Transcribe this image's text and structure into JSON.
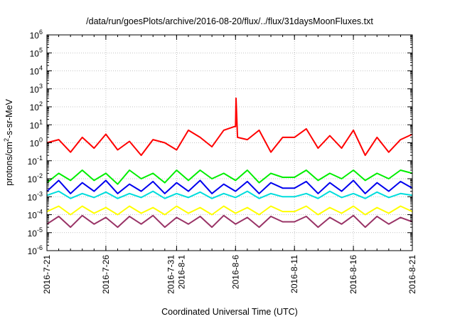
{
  "chart_data": {
    "type": "line",
    "title": "/data/run/goesPlots/archive/2016-08-20/flux/../flux/31daysMoonFluxes.txt",
    "xlabel": "Coordinated Universal Time (UTC)",
    "ylabel": "protons/cm²-s-sr-MeV",
    "ylabel_parts": {
      "pre": "protons/cm",
      "sup": "2",
      "post": "-s-sr-MeV"
    },
    "yscale": "log",
    "ylim_exponents": [
      -6,
      6
    ],
    "y_tick_labels": [
      {
        "base": "10",
        "exp": "-6"
      },
      {
        "base": "10",
        "exp": "-5"
      },
      {
        "base": "10",
        "exp": "-4"
      },
      {
        "base": "10",
        "exp": "-3"
      },
      {
        "base": "10",
        "exp": "-2"
      },
      {
        "base": "10",
        "exp": "-1"
      },
      {
        "base": "10",
        "exp": "0"
      },
      {
        "base": "10",
        "exp": "1"
      },
      {
        "base": "10",
        "exp": "2"
      },
      {
        "base": "10",
        "exp": "3"
      },
      {
        "base": "10",
        "exp": "4"
      },
      {
        "base": "10",
        "exp": "5"
      },
      {
        "base": "10",
        "exp": "6"
      }
    ],
    "x_start": "2016-07-21",
    "x_end": "2016-08-21",
    "x_tick_labels": [
      "2016-7-21",
      "2016-7-26",
      "2016-7-31\n2016-8-1",
      "2016-8-6",
      "2016-8-11",
      "2016-8-16",
      "2016-8-21"
    ],
    "x_tick_dates": [
      "2016-07-21",
      "2016-07-26",
      "2016-08-01",
      "2016-08-06",
      "2016-08-11",
      "2016-08-16",
      "2016-08-21"
    ],
    "grid": true,
    "legend": "none",
    "series": [
      {
        "color": "#ff0000",
        "points": [
          [
            "2016-07-21",
            1.0
          ],
          [
            "2016-07-22",
            1.5
          ],
          [
            "2016-07-23",
            0.3
          ],
          [
            "2016-07-24",
            2.0
          ],
          [
            "2016-07-25",
            0.5
          ],
          [
            "2016-07-26",
            3.0
          ],
          [
            "2016-07-27",
            0.4
          ],
          [
            "2016-07-28",
            1.2
          ],
          [
            "2016-07-29",
            0.2
          ],
          [
            "2016-07-30",
            1.5
          ],
          [
            "2016-07-31",
            1.0
          ],
          [
            "2016-08-01",
            0.4
          ],
          [
            "2016-08-02",
            5.0
          ],
          [
            "2016-08-03",
            2.0
          ],
          [
            "2016-08-04",
            0.6
          ],
          [
            "2016-08-05",
            5.0
          ],
          [
            "2016-08-06",
            8.0
          ],
          [
            "2016-08-07",
            1.5
          ],
          [
            "2016-08-08",
            5.0
          ],
          [
            "2016-08-09",
            0.3
          ],
          [
            "2016-08-10",
            2.0
          ],
          [
            "2016-08-11",
            2.0
          ],
          [
            "2016-08-12",
            6.0
          ],
          [
            "2016-08-13",
            0.5
          ],
          [
            "2016-08-14",
            2.5
          ],
          [
            "2016-08-15",
            0.5
          ],
          [
            "2016-08-16",
            5.0
          ],
          [
            "2016-08-17",
            0.2
          ],
          [
            "2016-08-18",
            2.0
          ],
          [
            "2016-08-19",
            0.3
          ],
          [
            "2016-08-20",
            1.5
          ],
          [
            "2016-08-21",
            3.0
          ]
        ],
        "peak": [
          "2016-08-06",
          300
        ]
      },
      {
        "color": "#00ee00",
        "points": [
          [
            "2016-07-21",
            0.006
          ],
          [
            "2016-07-22",
            0.02
          ],
          [
            "2016-07-23",
            0.008
          ],
          [
            "2016-07-24",
            0.03
          ],
          [
            "2016-07-25",
            0.008
          ],
          [
            "2016-07-26",
            0.02
          ],
          [
            "2016-07-27",
            0.005
          ],
          [
            "2016-07-28",
            0.03
          ],
          [
            "2016-07-29",
            0.01
          ],
          [
            "2016-07-30",
            0.02
          ],
          [
            "2016-07-31",
            0.006
          ],
          [
            "2016-08-01",
            0.03
          ],
          [
            "2016-08-02",
            0.008
          ],
          [
            "2016-08-03",
            0.03
          ],
          [
            "2016-08-04",
            0.01
          ],
          [
            "2016-08-05",
            0.02
          ],
          [
            "2016-08-06",
            0.008
          ],
          [
            "2016-08-07",
            0.03
          ],
          [
            "2016-08-08",
            0.006
          ],
          [
            "2016-08-09",
            0.02
          ],
          [
            "2016-08-10",
            0.012
          ],
          [
            "2016-08-11",
            0.012
          ],
          [
            "2016-08-12",
            0.03
          ],
          [
            "2016-08-13",
            0.008
          ],
          [
            "2016-08-14",
            0.02
          ],
          [
            "2016-08-15",
            0.01
          ],
          [
            "2016-08-16",
            0.03
          ],
          [
            "2016-08-17",
            0.008
          ],
          [
            "2016-08-18",
            0.02
          ],
          [
            "2016-08-19",
            0.01
          ],
          [
            "2016-08-20",
            0.03
          ],
          [
            "2016-08-21",
            0.02
          ]
        ]
      },
      {
        "color": "#00dddd",
        "points": [
          [
            "2016-07-21",
            0.0012
          ],
          [
            "2016-07-22",
            0.002
          ],
          [
            "2016-07-23",
            0.0008
          ],
          [
            "2016-07-24",
            0.0015
          ],
          [
            "2016-07-25",
            0.0009
          ],
          [
            "2016-07-26",
            0.0018
          ],
          [
            "2016-07-27",
            0.0008
          ],
          [
            "2016-07-28",
            0.0015
          ],
          [
            "2016-07-29",
            0.0009
          ],
          [
            "2016-07-30",
            0.002
          ],
          [
            "2016-07-31",
            0.0008
          ],
          [
            "2016-08-01",
            0.0015
          ],
          [
            "2016-08-02",
            0.0009
          ],
          [
            "2016-08-03",
            0.0018
          ],
          [
            "2016-08-04",
            0.0008
          ],
          [
            "2016-08-05",
            0.0015
          ],
          [
            "2016-08-06",
            0.0009
          ],
          [
            "2016-08-07",
            0.002
          ],
          [
            "2016-08-08",
            0.0008
          ],
          [
            "2016-08-09",
            0.0015
          ],
          [
            "2016-08-10",
            0.001
          ],
          [
            "2016-08-11",
            0.001
          ],
          [
            "2016-08-12",
            0.0015
          ],
          [
            "2016-08-13",
            0.0008
          ],
          [
            "2016-08-14",
            0.002
          ],
          [
            "2016-08-15",
            0.0009
          ],
          [
            "2016-08-16",
            0.0015
          ],
          [
            "2016-08-17",
            0.0008
          ],
          [
            "2016-08-18",
            0.0018
          ],
          [
            "2016-08-19",
            0.0009
          ],
          [
            "2016-08-20",
            0.0015
          ],
          [
            "2016-08-21",
            0.0012
          ]
        ]
      },
      {
        "color": "#0000ee",
        "points": [
          [
            "2016-07-21",
            0.002
          ],
          [
            "2016-07-22",
            0.008
          ],
          [
            "2016-07-23",
            0.0015
          ],
          [
            "2016-07-24",
            0.006
          ],
          [
            "2016-07-25",
            0.002
          ],
          [
            "2016-07-26",
            0.008
          ],
          [
            "2016-07-27",
            0.0015
          ],
          [
            "2016-07-28",
            0.005
          ],
          [
            "2016-07-29",
            0.002
          ],
          [
            "2016-07-30",
            0.007
          ],
          [
            "2016-07-31",
            0.0015
          ],
          [
            "2016-08-01",
            0.006
          ],
          [
            "2016-08-02",
            0.002
          ],
          [
            "2016-08-03",
            0.008
          ],
          [
            "2016-08-04",
            0.0015
          ],
          [
            "2016-08-05",
            0.005
          ],
          [
            "2016-08-06",
            0.002
          ],
          [
            "2016-08-07",
            0.007
          ],
          [
            "2016-08-08",
            0.0015
          ],
          [
            "2016-08-09",
            0.006
          ],
          [
            "2016-08-10",
            0.003
          ],
          [
            "2016-08-11",
            0.003
          ],
          [
            "2016-08-12",
            0.007
          ],
          [
            "2016-08-13",
            0.0015
          ],
          [
            "2016-08-14",
            0.006
          ],
          [
            "2016-08-15",
            0.002
          ],
          [
            "2016-08-16",
            0.008
          ],
          [
            "2016-08-17",
            0.0015
          ],
          [
            "2016-08-18",
            0.006
          ],
          [
            "2016-08-19",
            0.002
          ],
          [
            "2016-08-20",
            0.007
          ],
          [
            "2016-08-21",
            0.003
          ]
        ]
      },
      {
        "color": "#ffff00",
        "points": [
          [
            "2016-07-21",
            0.00015
          ],
          [
            "2016-07-22",
            0.0003
          ],
          [
            "2016-07-23",
            0.0001
          ],
          [
            "2016-07-24",
            0.0003
          ],
          [
            "2016-07-25",
            0.00012
          ],
          [
            "2016-07-26",
            0.00025
          ],
          [
            "2016-07-27",
            0.0001
          ],
          [
            "2016-07-28",
            0.0003
          ],
          [
            "2016-07-29",
            0.00012
          ],
          [
            "2016-07-30",
            0.00025
          ],
          [
            "2016-07-31",
            0.0001
          ],
          [
            "2016-08-01",
            0.0003
          ],
          [
            "2016-08-02",
            0.00012
          ],
          [
            "2016-08-03",
            0.00025
          ],
          [
            "2016-08-04",
            0.0001
          ],
          [
            "2016-08-05",
            0.0003
          ],
          [
            "2016-08-06",
            0.00012
          ],
          [
            "2016-08-07",
            0.00025
          ],
          [
            "2016-08-08",
            0.0001
          ],
          [
            "2016-08-09",
            0.0003
          ],
          [
            "2016-08-10",
            0.00015
          ],
          [
            "2016-08-11",
            0.00015
          ],
          [
            "2016-08-12",
            0.0003
          ],
          [
            "2016-08-13",
            0.0001
          ],
          [
            "2016-08-14",
            0.00025
          ],
          [
            "2016-08-15",
            0.00012
          ],
          [
            "2016-08-16",
            0.0003
          ],
          [
            "2016-08-17",
            0.0001
          ],
          [
            "2016-08-18",
            0.00025
          ],
          [
            "2016-08-19",
            0.00012
          ],
          [
            "2016-08-20",
            0.0003
          ],
          [
            "2016-08-21",
            0.00015
          ]
        ]
      },
      {
        "color": "#993366",
        "points": [
          [
            "2016-07-21",
            3e-05
          ],
          [
            "2016-07-22",
            8e-05
          ],
          [
            "2016-07-23",
            2e-05
          ],
          [
            "2016-07-24",
            9e-05
          ],
          [
            "2016-07-25",
            3e-05
          ],
          [
            "2016-07-26",
            7e-05
          ],
          [
            "2016-07-27",
            2e-05
          ],
          [
            "2016-07-28",
            8e-05
          ],
          [
            "2016-07-29",
            3e-05
          ],
          [
            "2016-07-30",
            9e-05
          ],
          [
            "2016-07-31",
            2e-05
          ],
          [
            "2016-08-01",
            7e-05
          ],
          [
            "2016-08-02",
            3e-05
          ],
          [
            "2016-08-03",
            8e-05
          ],
          [
            "2016-08-04",
            2e-05
          ],
          [
            "2016-08-05",
            9e-05
          ],
          [
            "2016-08-06",
            3e-05
          ],
          [
            "2016-08-07",
            7e-05
          ],
          [
            "2016-08-08",
            2e-05
          ],
          [
            "2016-08-09",
            8e-05
          ],
          [
            "2016-08-10",
            4e-05
          ],
          [
            "2016-08-11",
            4e-05
          ],
          [
            "2016-08-12",
            8e-05
          ],
          [
            "2016-08-13",
            2e-05
          ],
          [
            "2016-08-14",
            7e-05
          ],
          [
            "2016-08-15",
            3e-05
          ],
          [
            "2016-08-16",
            9e-05
          ],
          [
            "2016-08-17",
            2e-05
          ],
          [
            "2016-08-18",
            8e-05
          ],
          [
            "2016-08-19",
            3e-05
          ],
          [
            "2016-08-20",
            7e-05
          ],
          [
            "2016-08-21",
            4e-05
          ]
        ]
      }
    ]
  }
}
